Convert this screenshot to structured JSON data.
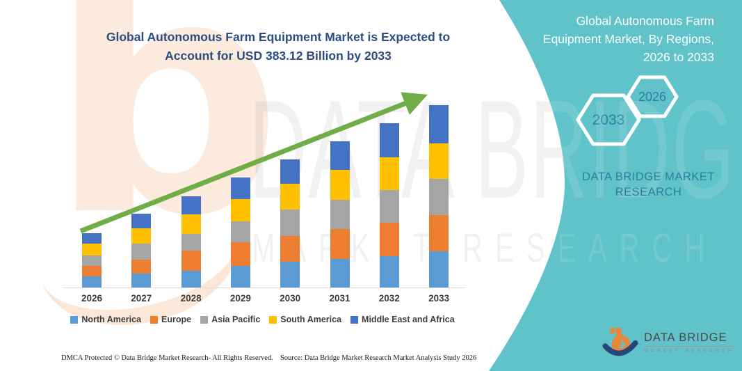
{
  "theme": {
    "panel_teal": "#5FC3C9",
    "title_navy": "#2B4D82",
    "hexagon_text_color": "#2E7DA5",
    "axis_text_color": "#3D3D3D"
  },
  "chart_data": {
    "type": "bar",
    "stacked": true,
    "title": "Global Autonomous Farm Equipment Market is Expected to Account for USD 383.12 Billion by 2033",
    "categories": [
      "2026",
      "2027",
      "2028",
      "2029",
      "2030",
      "2031",
      "2032",
      "2033"
    ],
    "series": [
      {
        "name": "North America",
        "color": "#5B9BD5",
        "values": [
          24,
          29,
          35,
          45,
          54,
          60,
          66,
          76
        ]
      },
      {
        "name": "Europe",
        "color": "#ED7D31",
        "values": [
          21,
          29,
          42,
          50,
          54,
          63,
          70,
          76
        ]
      },
      {
        "name": "Asia Pacific",
        "color": "#A5A5A5",
        "values": [
          22,
          34,
          36,
          44,
          56,
          61,
          69,
          76
        ]
      },
      {
        "name": "South America",
        "color": "#FFC000",
        "values": [
          25,
          32,
          41,
          47,
          54,
          63,
          69,
          75
        ]
      },
      {
        "name": "Middle East and Africa",
        "color": "#4472C4",
        "values": [
          22,
          31,
          38,
          45,
          51,
          60,
          71,
          80.12
        ]
      }
    ],
    "totals": [
      114,
      155,
      192,
      231,
      269,
      307,
      345,
      383.12
    ],
    "units": "USD billion",
    "note": "Segment values estimated from bar heights; only the 2033 total (USD 383.12 billion) is labeled in the image.",
    "xlabel": "",
    "ylabel": "",
    "legend_position": "bottom",
    "grid": false,
    "trend_arrow_color": "#70AD47"
  },
  "sidebar": {
    "title": "Global Autonomous Farm Equipment Market, By Regions, 2026 to 2033",
    "hexagons": [
      {
        "label": "2033"
      },
      {
        "label": "2026"
      }
    ],
    "brand": "DATA BRIDGE MARKET RESEARCH"
  },
  "watermark": {
    "line1": "DATA BRIDGE",
    "line2": "MARKET RESEARCH",
    "letter": "b"
  },
  "logo": {
    "name": "DATA BRIDGE",
    "subtext": "MARKET RESEARCH"
  },
  "footer": {
    "dmca": "DMCA Protected © Data Bridge Market Research-  All Rights Reserved.",
    "source": "Source: Data Bridge Market Research  Market Analysis Study 2026"
  }
}
